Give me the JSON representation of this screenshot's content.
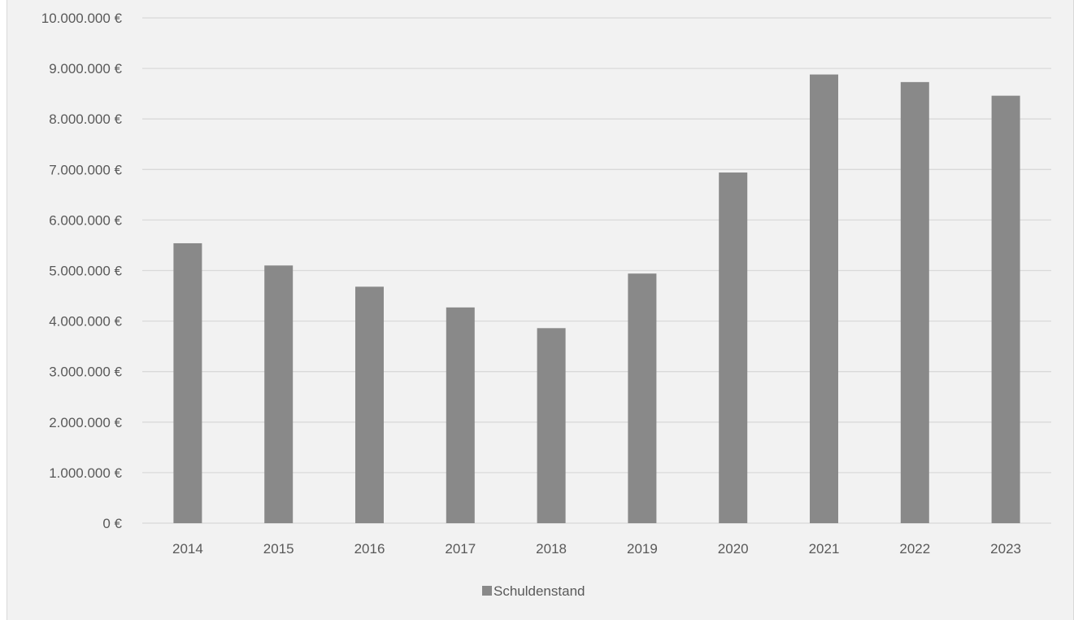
{
  "chart_data": {
    "type": "bar",
    "categories": [
      "2014",
      "2015",
      "2016",
      "2017",
      "2018",
      "2019",
      "2020",
      "2021",
      "2022",
      "2023"
    ],
    "series": [
      {
        "name": "Schuldenstand",
        "values": [
          5540000,
          5100000,
          4680000,
          4270000,
          3860000,
          4940000,
          6940000,
          8880000,
          8730000,
          8460000
        ]
      }
    ],
    "ylim": [
      0,
      10000000
    ],
    "yticks": [
      0,
      1000000,
      2000000,
      3000000,
      4000000,
      5000000,
      6000000,
      7000000,
      8000000,
      9000000,
      10000000
    ],
    "ytick_labels": [
      "0 €",
      "1.000.000 €",
      "2.000.000 €",
      "3.000.000 €",
      "4.000.000 €",
      "5.000.000 €",
      "6.000.000 €",
      "7.000.000 €",
      "8.000.000 €",
      "9.000.000 €",
      "10.000.000 €"
    ],
    "title": "",
    "xlabel": "",
    "ylabel": "",
    "grid": true,
    "legend": "bottom",
    "colors": {
      "bar": "#898989",
      "grid": "#d9d9d9",
      "text": "#595959",
      "background": "#f2f2f2"
    }
  }
}
